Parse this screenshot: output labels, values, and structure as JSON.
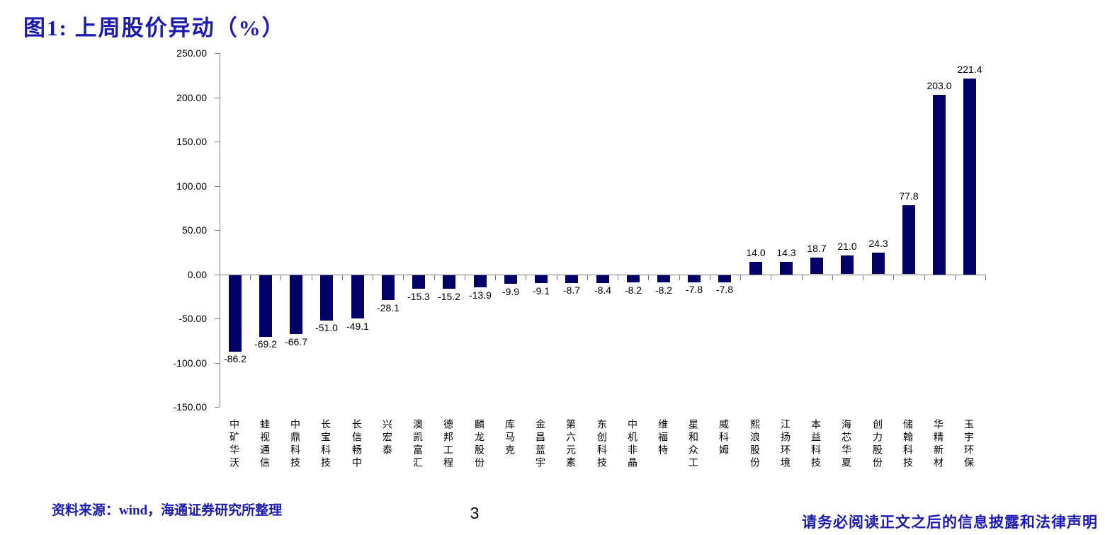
{
  "page": {
    "title": "图1:  上周股价异动（%）",
    "source_note": "资料来源：wind，海通证券研究所整理",
    "page_number": "3",
    "disclaimer": "请务必阅读正文之后的信息披露和法律声明"
  },
  "colors": {
    "accent": "#1b1bb3",
    "bar": "#000066",
    "axis": "#808080",
    "text": "#000000"
  },
  "chart_data": {
    "type": "bar",
    "title": "上周股价异动（%）",
    "xlabel": "",
    "ylabel": "",
    "ylim": [
      -150,
      250
    ],
    "ytick_step": 50,
    "ytick_labels": [
      "250.00",
      "200.00",
      "150.00",
      "100.00",
      "50.00",
      "0.00",
      "-50.00",
      "-100.00",
      "-150.00"
    ],
    "grid": false,
    "legend": "none",
    "value_label_position": "outside-end",
    "bar_color": "#000066",
    "categories": [
      "中矿华沃",
      "蛙视通信",
      "中鼎科技",
      "长宝科技",
      "长信畅中",
      "兴宏泰",
      "澳凯富汇",
      "德邦工程",
      "麟龙股份",
      "库马克",
      "金昌蓝宇",
      "第六元素",
      "东创科技",
      "中机非晶",
      "维福特",
      "星和众工",
      "威科姆",
      "熙浪股份",
      "江扬环境",
      "本益科技",
      "海芯华夏",
      "创力股份",
      "储翰科技",
      "华精新材",
      "玉宇环保"
    ],
    "values": [
      -86.2,
      -69.2,
      -66.7,
      -51.0,
      -49.1,
      -28.1,
      -15.3,
      -15.2,
      -13.9,
      -9.9,
      -9.1,
      -8.7,
      -8.4,
      -8.2,
      -8.2,
      -7.8,
      -7.8,
      14.0,
      14.3,
      18.7,
      21.0,
      24.3,
      77.8,
      203.0,
      221.4
    ]
  }
}
